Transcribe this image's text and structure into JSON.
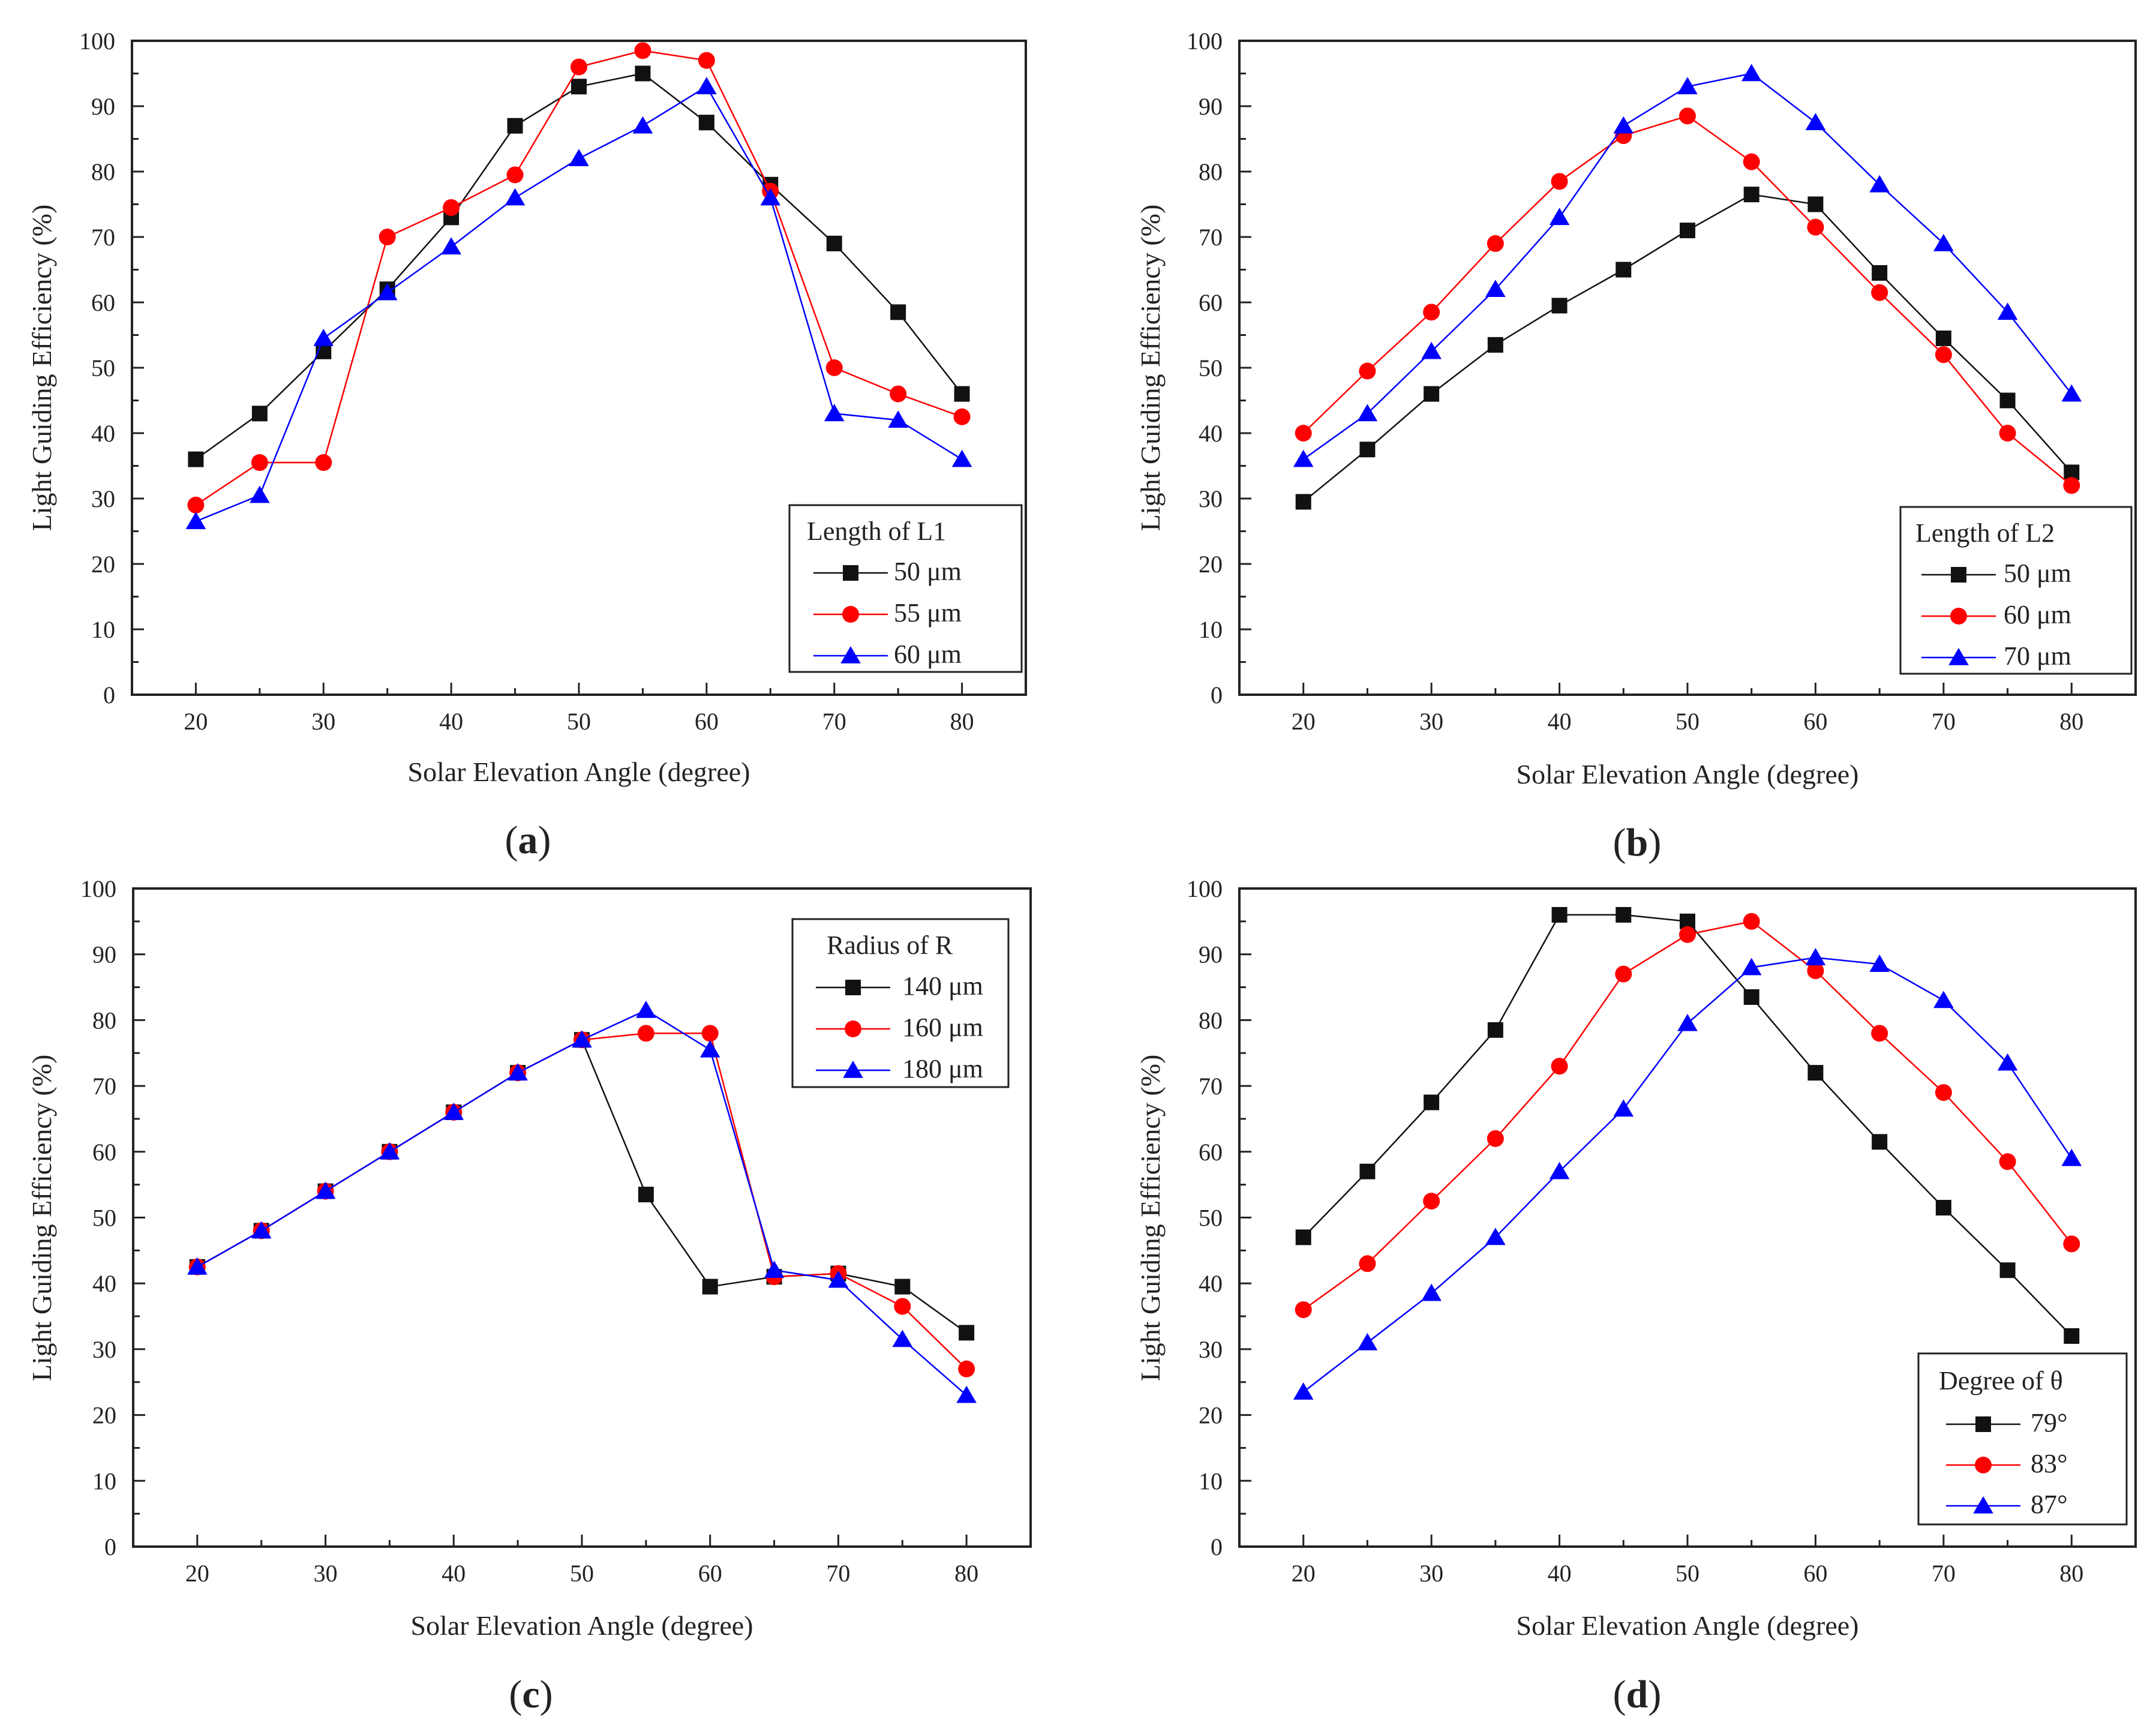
{
  "colors": {
    "black": "#111111",
    "red": "#ff0000",
    "blue": "#0000ff"
  },
  "chart_data": [
    {
      "panel": "a",
      "type": "line",
      "xlabel": "Solar Elevation Angle (degree)",
      "ylabel": "Light Guiding Efficiency (%)",
      "xlim": [
        15,
        85
      ],
      "ylim": [
        0,
        100
      ],
      "x_ticks": [
        20,
        30,
        40,
        50,
        60,
        70,
        80
      ],
      "y_ticks": [
        0,
        10,
        20,
        30,
        40,
        50,
        60,
        70,
        80,
        90,
        100
      ],
      "legend_title": "Length of L1",
      "legend_location": "bottom-right",
      "x": [
        20,
        25,
        30,
        35,
        40,
        45,
        50,
        55,
        60,
        65,
        70,
        75,
        80
      ],
      "series": [
        {
          "name": "50 μm",
          "color": "#111111",
          "marker": "square",
          "values": [
            36,
            43,
            52.5,
            62,
            73,
            87,
            93,
            95,
            87.5,
            78,
            69,
            58.5,
            46
          ]
        },
        {
          "name": "55 μm",
          "color": "#ff0000",
          "marker": "circle",
          "values": [
            29,
            35.5,
            35.5,
            70,
            74.5,
            79.5,
            96,
            98.5,
            97,
            77,
            50,
            46,
            42.5
          ]
        },
        {
          "name": "60 μm",
          "color": "#0000ff",
          "marker": "triangle",
          "values": [
            26.5,
            30.5,
            54.5,
            61.5,
            68.5,
            76,
            82,
            87,
            93,
            76,
            43,
            42,
            36
          ]
        }
      ]
    },
    {
      "panel": "b",
      "type": "line",
      "xlabel": "Solar Elevation Angle (degree)",
      "ylabel": "Light Guiding Efficiency (%)",
      "xlim": [
        15,
        85
      ],
      "ylim": [
        0,
        100
      ],
      "x_ticks": [
        20,
        30,
        40,
        50,
        60,
        70,
        80
      ],
      "y_ticks": [
        0,
        10,
        20,
        30,
        40,
        50,
        60,
        70,
        80,
        90,
        100
      ],
      "legend_title": "Length of L2",
      "legend_location": "bottom-right",
      "x": [
        20,
        25,
        30,
        35,
        40,
        45,
        50,
        55,
        60,
        65,
        70,
        75,
        80
      ],
      "series": [
        {
          "name": "50 μm",
          "color": "#111111",
          "marker": "square",
          "values": [
            29.5,
            37.5,
            46,
            53.5,
            59.5,
            65,
            71,
            76.5,
            75,
            64.5,
            54.5,
            45,
            34
          ]
        },
        {
          "name": "60 μm",
          "color": "#ff0000",
          "marker": "circle",
          "values": [
            40,
            49.5,
            58.5,
            69,
            78.5,
            85.5,
            88.5,
            81.5,
            71.5,
            61.5,
            52,
            40,
            32
          ]
        },
        {
          "name": "70 μm",
          "color": "#0000ff",
          "marker": "triangle",
          "values": [
            36,
            43,
            52.5,
            62,
            73,
            87,
            93,
            95,
            87.5,
            78,
            69,
            58.5,
            46
          ]
        }
      ]
    },
    {
      "panel": "c",
      "type": "line",
      "xlabel": "Solar Elevation Angle (degree)",
      "ylabel": "Light Guiding Efficiency (%)",
      "xlim": [
        15,
        85
      ],
      "ylim": [
        0,
        100
      ],
      "x_ticks": [
        20,
        30,
        40,
        50,
        60,
        70,
        80
      ],
      "y_ticks": [
        0,
        10,
        20,
        30,
        40,
        50,
        60,
        70,
        80,
        90,
        100
      ],
      "legend_title": "Radius of R",
      "legend_location": "top-right",
      "x": [
        20,
        25,
        30,
        35,
        40,
        45,
        50,
        55,
        60,
        65,
        70,
        75,
        80
      ],
      "series": [
        {
          "name": "140 μm",
          "color": "#111111",
          "marker": "square",
          "values": [
            42.5,
            48,
            54,
            60,
            66,
            72,
            77,
            53.5,
            39.5,
            41,
            41.5,
            39.5,
            32.5
          ]
        },
        {
          "name": "160 μm",
          "color": "#ff0000",
          "marker": "circle",
          "values": [
            42.5,
            48,
            54,
            60,
            66,
            72,
            77,
            78,
            78,
            41,
            41.5,
            36.5,
            27
          ]
        },
        {
          "name": "180 μm",
          "color": "#0000ff",
          "marker": "triangle",
          "values": [
            42.5,
            48,
            54,
            60,
            66,
            72,
            77,
            81.5,
            75.5,
            42,
            40.5,
            31.5,
            23
          ]
        }
      ]
    },
    {
      "panel": "d",
      "type": "line",
      "xlabel": "Solar Elevation Angle (degree)",
      "ylabel": "Light Guiding Efficiency (%)",
      "xlim": [
        15,
        85
      ],
      "ylim": [
        0,
        100
      ],
      "x_ticks": [
        20,
        30,
        40,
        50,
        60,
        70,
        80
      ],
      "y_ticks": [
        0,
        10,
        20,
        30,
        40,
        50,
        60,
        70,
        80,
        90,
        100
      ],
      "legend_title": "Degree of θ",
      "legend_location": "bottom-right",
      "x": [
        20,
        25,
        30,
        35,
        40,
        45,
        50,
        55,
        60,
        65,
        70,
        75,
        80
      ],
      "series": [
        {
          "name": "79°",
          "color": "#111111",
          "marker": "square",
          "values": [
            47,
            57,
            67.5,
            78.5,
            96,
            96,
            95,
            83.5,
            72,
            61.5,
            51.5,
            42,
            32
          ]
        },
        {
          "name": "83°",
          "color": "#ff0000",
          "marker": "circle",
          "values": [
            36,
            43,
            52.5,
            62,
            73,
            87,
            93,
            95,
            87.5,
            78,
            69,
            58.5,
            46
          ]
        },
        {
          "name": "87°",
          "color": "#0000ff",
          "marker": "triangle",
          "values": [
            23.5,
            31,
            38.5,
            47,
            57,
            66.5,
            79.5,
            88,
            89.5,
            88.5,
            83,
            73.5,
            59
          ]
        }
      ]
    }
  ],
  "panel_labels": {
    "a": {
      "open": "(",
      "letter": "a",
      "close": ")"
    },
    "b": {
      "open": "(",
      "letter": "b",
      "close": ")"
    },
    "c": {
      "open": "(",
      "letter": "c",
      "close": ")"
    },
    "d": {
      "open": "(",
      "letter": "d",
      "close": ")"
    }
  }
}
